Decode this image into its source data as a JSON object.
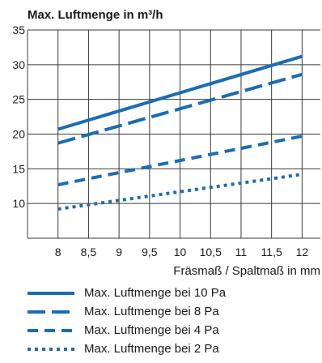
{
  "chart_data": {
    "type": "line",
    "title": "",
    "ylabel": "Max. Luftmenge in m³/h",
    "xlabel": "Fräsmaß / Spaltmaß in mm",
    "x_ticks": [
      "8",
      "8,5",
      "9",
      "9,5",
      "10",
      "10,5",
      "11",
      "11,5",
      "12"
    ],
    "x": [
      8,
      12
    ],
    "xlim": [
      7.5,
      12.3
    ],
    "y_ticks": [
      "35",
      "30",
      "25",
      "20",
      "15",
      "10"
    ],
    "ylim": [
      5,
      35
    ],
    "grid": true,
    "series": [
      {
        "name": "Max. Luftmenge bei 10 Pa",
        "values": [
          20.7,
          31.2
        ],
        "color": "#1a6cb5",
        "dash": "solid"
      },
      {
        "name": "Max. Luftmenge bei 8 Pa",
        "values": [
          18.7,
          28.6
        ],
        "color": "#1a6cb5",
        "dash": "long-dash"
      },
      {
        "name": "Max. Luftmenge bei 4 Pa",
        "values": [
          12.7,
          19.7
        ],
        "color": "#1a6cb5",
        "dash": "dash"
      },
      {
        "name": "Max. Luftmenge bei 2 Pa",
        "values": [
          9.2,
          14.2
        ],
        "color": "#1a6cb5",
        "dash": "dot"
      }
    ]
  }
}
